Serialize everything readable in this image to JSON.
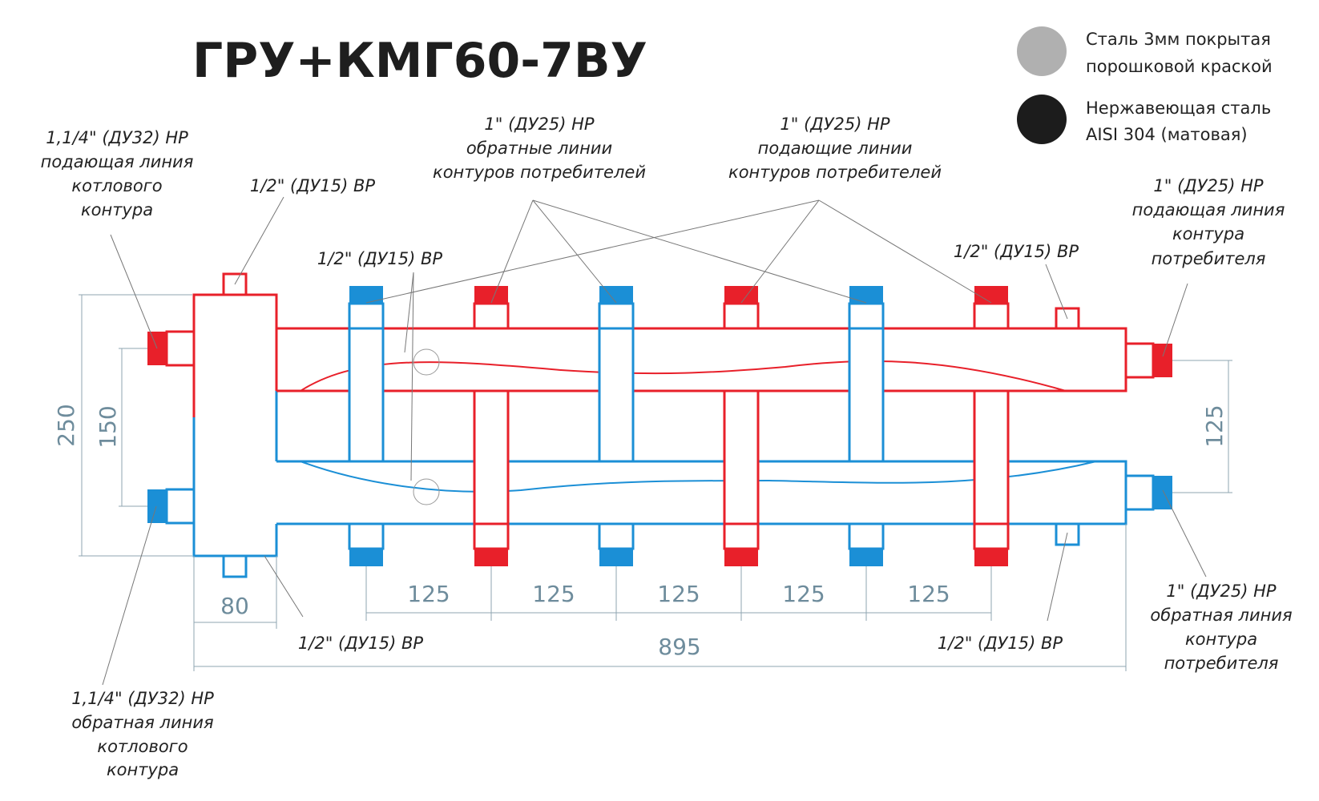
{
  "title": "ГРУ+КМГ60-7ВУ",
  "legend": [
    {
      "line1": "Сталь 3мм покрытая",
      "line2": "порошковой краской",
      "color": "#b0b0b0"
    },
    {
      "line1": "Нержавеющая сталь",
      "line2": "AISI 304 (матовая)",
      "color": "#1c1c1c"
    }
  ],
  "colors": {
    "supply": "#e8202a",
    "return": "#1b8fd6"
  },
  "labels": {
    "boiler_supply": [
      "1,1/4\" (ДУ32) НР",
      "подающая линия",
      "котлового",
      "контура"
    ],
    "boiler_return": [
      "1,1/4\" (ДУ32) НР",
      "обратная линия",
      "котлового",
      "контура"
    ],
    "vr_top_left": "1/2\" (ДУ15) ВР",
    "vr_mid": "1/2\" (ДУ15) ВР",
    "vr_top_right": "1/2\" (ДУ15) ВР",
    "vr_bottom_left": "1/2\" (ДУ15) ВР",
    "vr_bottom_right": "1/2\" (ДУ15) ВР",
    "returns_consumers": [
      "1\" (ДУ25) НР",
      "обратные линии",
      "контуров потребителей"
    ],
    "supplies_consumers": [
      "1\" (ДУ25) НР",
      "подающие линии",
      "контуров потребителей"
    ],
    "consumer_supply": [
      "1\" (ДУ25) НР",
      "подающая линия",
      "контура",
      "потребителя"
    ],
    "consumer_return": [
      "1\" (ДУ25) НР",
      "обратная линия",
      "контура",
      "потребителя"
    ]
  },
  "dimensions": {
    "d250": "250",
    "d150": "150",
    "d125_right": "125",
    "d80": "80",
    "spacing": [
      "125",
      "125",
      "125",
      "125",
      "125"
    ],
    "d895": "895"
  }
}
